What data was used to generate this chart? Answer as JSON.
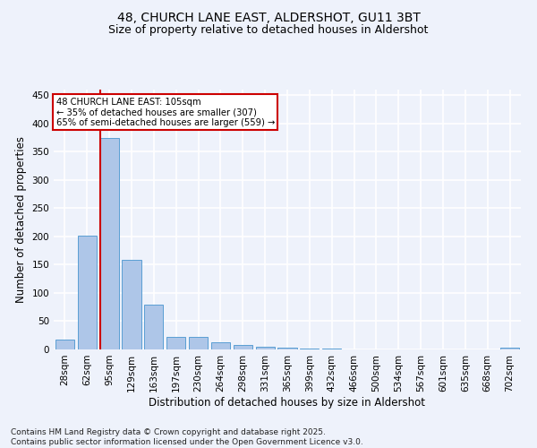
{
  "title1": "48, CHURCH LANE EAST, ALDERSHOT, GU11 3BT",
  "title2": "Size of property relative to detached houses in Aldershot",
  "xlabel": "Distribution of detached houses by size in Aldershot",
  "ylabel": "Number of detached properties",
  "categories": [
    "28sqm",
    "62sqm",
    "95sqm",
    "129sqm",
    "163sqm",
    "197sqm",
    "230sqm",
    "264sqm",
    "298sqm",
    "331sqm",
    "365sqm",
    "399sqm",
    "432sqm",
    "466sqm",
    "500sqm",
    "534sqm",
    "567sqm",
    "601sqm",
    "635sqm",
    "668sqm",
    "702sqm"
  ],
  "values": [
    18,
    202,
    375,
    158,
    79,
    22,
    22,
    13,
    8,
    5,
    3,
    1,
    2,
    0,
    0,
    0,
    0,
    0,
    0,
    0,
    3
  ],
  "bar_color": "#aec6e8",
  "bar_edge_color": "#5a9fd4",
  "vline_color": "#cc0000",
  "vline_index": 2,
  "annotation_text": "48 CHURCH LANE EAST: 105sqm\n← 35% of detached houses are smaller (307)\n65% of semi-detached houses are larger (559) →",
  "annotation_box_color": "#ffffff",
  "annotation_box_edge": "#cc0000",
  "ylim": [
    0,
    460
  ],
  "yticks": [
    0,
    50,
    100,
    150,
    200,
    250,
    300,
    350,
    400,
    450
  ],
  "background_color": "#eef2fb",
  "footer": "Contains HM Land Registry data © Crown copyright and database right 2025.\nContains public sector information licensed under the Open Government Licence v3.0.",
  "title_fontsize": 10,
  "subtitle_fontsize": 9,
  "tick_fontsize": 7.5,
  "axis_label_fontsize": 8.5,
  "footer_fontsize": 6.5
}
